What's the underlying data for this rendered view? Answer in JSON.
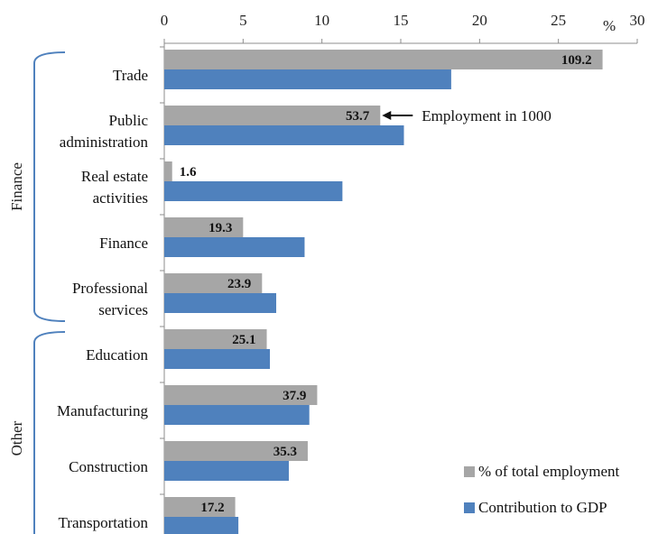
{
  "chart_data": {
    "type": "bar",
    "orientation": "horizontal",
    "x_unit_label": "%",
    "xlim": [
      0,
      30
    ],
    "x_ticks": [
      0,
      5,
      10,
      15,
      20,
      25,
      30
    ],
    "x_axis_position": "top",
    "grid": false,
    "legend_position": "bottom-right",
    "categories": [
      [
        "Trade"
      ],
      [
        "Public",
        "administration"
      ],
      [
        "Real estate",
        "activities"
      ],
      [
        "Finance"
      ],
      [
        "Professional",
        "services"
      ],
      [
        "Education"
      ],
      [
        "Manufacturing"
      ],
      [
        "Construction"
      ],
      [
        "Transportation"
      ]
    ],
    "series": [
      {
        "name": "% of total employment",
        "color": "#a6a6a6",
        "values": [
          27.8,
          13.7,
          0.5,
          5.0,
          6.2,
          6.5,
          9.7,
          9.1,
          4.5
        ],
        "data_labels": [
          "109.2",
          "53.7",
          "1.6",
          "19.3",
          "23.9",
          "25.1",
          "37.9",
          "35.3",
          "17.2"
        ]
      },
      {
        "name": "Contribution to GDP",
        "color": "#4f81bd",
        "values": [
          18.2,
          15.2,
          11.3,
          8.9,
          7.1,
          6.7,
          9.2,
          7.9,
          4.7
        ]
      }
    ],
    "groups": [
      {
        "label": "Finance",
        "from": 0,
        "to": 4
      },
      {
        "label": "Other",
        "from": 5,
        "to": 8
      }
    ],
    "annotation": {
      "text": "Employment in 1000",
      "category_index": 1
    }
  }
}
